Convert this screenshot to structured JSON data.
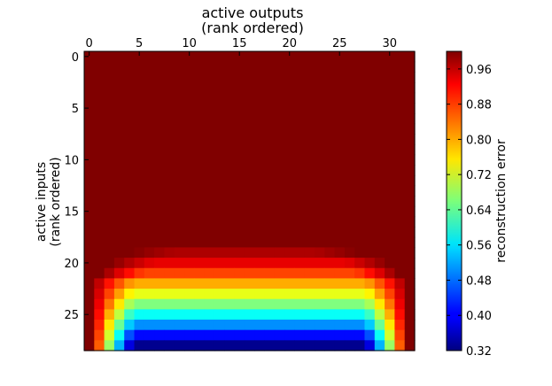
{
  "chart_data": {
    "type": "heatmap",
    "title": "",
    "xlabel_lines": [
      "active outputs",
      "(rank ordered)"
    ],
    "ylabel_lines": [
      "active inputs",
      "(rank ordered)"
    ],
    "x_range": [
      0,
      32
    ],
    "y_range": [
      0,
      28
    ],
    "x_ticks": [
      0,
      5,
      10,
      15,
      20,
      25,
      30
    ],
    "y_ticks": [
      0,
      5,
      10,
      15,
      20,
      25
    ],
    "xaxis_position": "top",
    "y_inverted": true,
    "grid": false,
    "colormap": "jet",
    "colorbar": {
      "label": "reconstruction error",
      "min": 0.32,
      "max": 1.0,
      "ticks": [
        "0.32",
        "0.40",
        "0.48",
        "0.56",
        "0.64",
        "0.72",
        "0.80",
        "0.88",
        "0.96"
      ]
    },
    "description_rule": "rows 0-18 are ~1.0 for all columns; the error drops toward the bottom rows (up to row 28), lowest (~0.33) in the middle columns of the last row, with columns 0-1 and 31-32 staying high",
    "row_profiles": {
      "start_row": 19,
      "rows": [
        {
          "row": 19,
          "left_col": 5,
          "right_col": 26,
          "center_value": 0.97
        },
        {
          "row": 20,
          "left_col": 3,
          "right_col": 29,
          "center_value": 0.93
        },
        {
          "row": 21,
          "left_col": 2,
          "right_col": 30,
          "center_value": 0.87
        },
        {
          "row": 22,
          "left_col": 1,
          "right_col": 31,
          "center_value": 0.8
        },
        {
          "row": 23,
          "left_col": 1,
          "right_col": 31,
          "center_value": 0.73
        },
        {
          "row": 24,
          "left_col": 1,
          "right_col": 31,
          "center_value": 0.66
        },
        {
          "row": 25,
          "left_col": 1,
          "right_col": 31,
          "center_value": 0.58
        },
        {
          "row": 26,
          "left_col": 1,
          "right_col": 31,
          "center_value": 0.5
        },
        {
          "row": 27,
          "left_col": 1,
          "right_col": 31,
          "center_value": 0.41
        },
        {
          "row": 28,
          "left_col": 1,
          "right_col": 31,
          "center_value": 0.33
        }
      ]
    }
  }
}
